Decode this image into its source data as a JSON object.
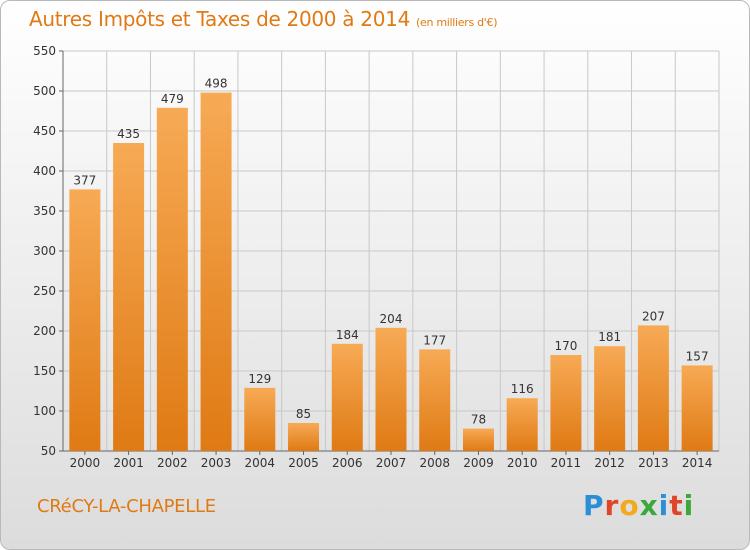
{
  "title": "Autres Impôts et Taxes de 2000 à 2014",
  "title_unit": "(en milliers d'€)",
  "commune": "CRéCY-LA-CHAPELLE",
  "logo": [
    "P",
    "r",
    "o",
    "x",
    "i",
    "t",
    "i"
  ],
  "logo_colors": [
    "#2b8fd6",
    "#e0452a",
    "#f2a91c",
    "#3aa83a",
    "#2b8fd6",
    "#e0452a",
    "#3aa83a"
  ],
  "colors": {
    "accent": "#e07a14",
    "bar_light": "#f7aa55",
    "bar_dark": "#e07a14",
    "grid": "#c8c8c8"
  },
  "chart_data": {
    "type": "bar",
    "categories": [
      "2000",
      "2001",
      "2002",
      "2003",
      "2004",
      "2005",
      "2006",
      "2007",
      "2008",
      "2009",
      "2010",
      "2011",
      "2012",
      "2013",
      "2014"
    ],
    "values": [
      377,
      435,
      479,
      498,
      129,
      85,
      184,
      204,
      177,
      78,
      116,
      170,
      181,
      207,
      157
    ],
    "ylim": [
      50,
      550
    ],
    "yticks": [
      50,
      100,
      150,
      200,
      250,
      300,
      350,
      400,
      450,
      500,
      550
    ],
    "grid": true,
    "data_labels": true
  }
}
